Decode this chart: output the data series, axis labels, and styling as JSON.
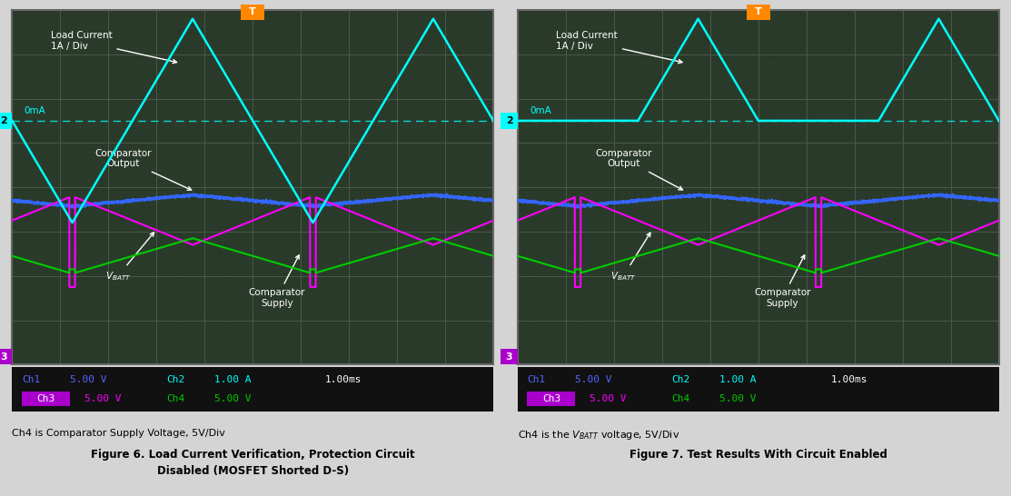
{
  "fig_bg": "#d4d4d4",
  "screen_bg": "#2a3a2a",
  "grid_major_color": "#4a5a4a",
  "grid_minor_color": "#3a4a3a",
  "border_color": "#888888",
  "cyan_color": "#00ffff",
  "magenta_color": "#ff00ff",
  "blue_color": "#3366ff",
  "green_color": "#00cc00",
  "orange_color": "#ff8800",
  "white": "#ffffff",
  "ch_bar_bg": "#111111",
  "ch3_box_color": "#aa00cc",
  "label1_left": "Ch4 is Comparator Supply Voltage, 5V/Div",
  "label2_left": "Figure 6. Load Current Verification, Protection Circuit\nDisabled (MOSFET Shorted D-S)",
  "label1_right": "Ch4 is the $V_{BATT}$ voltage, 5V/Div",
  "label2_right": "Figure 7. Test Results With Circuit Enabled"
}
